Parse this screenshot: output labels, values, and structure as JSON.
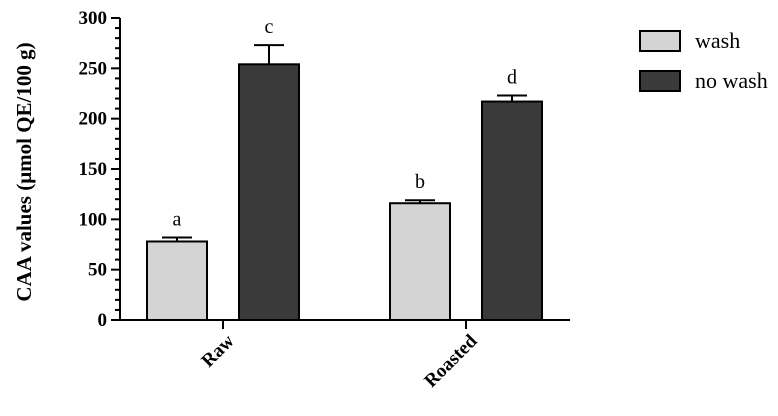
{
  "chart_data": {
    "type": "bar",
    "ylabel": "CAA values (μmol QE/100 g)",
    "ylim": [
      0,
      300
    ],
    "yticks": [
      "0",
      "50",
      "100",
      "150",
      "200",
      "250",
      "300"
    ],
    "categories": [
      "Raw",
      "Roasted"
    ],
    "series": [
      {
        "name": "wash",
        "color": "#d4d4d4",
        "values": [
          78,
          116
        ],
        "errors": [
          4,
          3
        ],
        "labels": [
          "a",
          "b"
        ]
      },
      {
        "name": "no wash",
        "color": "#3a3a3a",
        "values": [
          254,
          217
        ],
        "errors": [
          19,
          6
        ],
        "labels": [
          "c",
          "d"
        ]
      }
    ],
    "legend_position": "top-right"
  }
}
